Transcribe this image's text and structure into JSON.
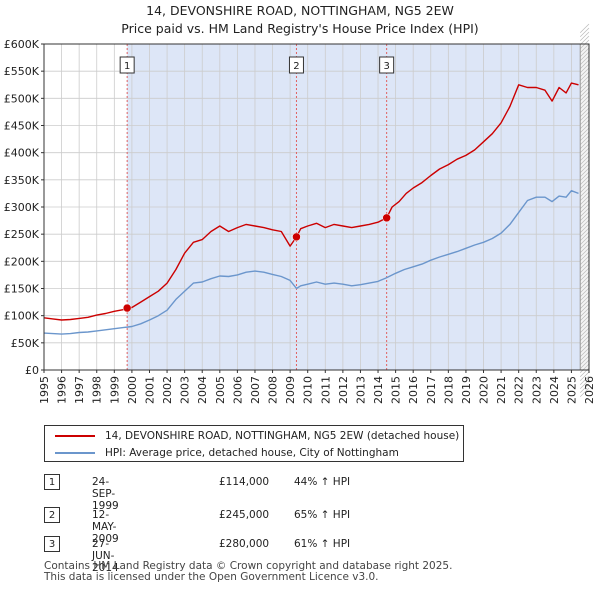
{
  "title_line1": "14, DEVONSHIRE ROAD, NOTTINGHAM, NG5 2EW",
  "title_line2": "Price paid vs. HM Land Registry's House Price Index (HPI)",
  "legend": {
    "property_label": "14, DEVONSHIRE ROAD, NOTTINGHAM, NG5 2EW (detached house)",
    "hpi_label": "HPI: Average price, detached house, City of Nottingham"
  },
  "annotations": [
    {
      "num": "1",
      "date": "24-SEP-1999",
      "price": "£114,000",
      "hpi": "44% ↑ HPI"
    },
    {
      "num": "2",
      "date": "12-MAY-2009",
      "price": "£245,000",
      "hpi": "65% ↑ HPI"
    },
    {
      "num": "3",
      "date": "27-JUN-2014",
      "price": "£280,000",
      "hpi": "61% ↑ HPI"
    }
  ],
  "footer_line1": "Contains HM Land Registry data © Crown copyright and database right 2025.",
  "footer_line2": "This data is licensed under the Open Government Licence v3.0.",
  "chart_data": {
    "type": "line",
    "title": "14, DEVONSHIRE ROAD, NOTTINGHAM, NG5 2EW — Price paid vs. HM Land Registry's House Price Index (HPI)",
    "xlabel": "",
    "ylabel": "",
    "xlim": [
      1995,
      2026
    ],
    "ylim": [
      0,
      600000
    ],
    "x_ticks": [
      1995,
      1996,
      1997,
      1998,
      1999,
      2000,
      2001,
      2002,
      2003,
      2004,
      2005,
      2006,
      2007,
      2008,
      2009,
      2010,
      2011,
      2012,
      2013,
      2014,
      2015,
      2016,
      2017,
      2018,
      2019,
      2020,
      2021,
      2022,
      2023,
      2024,
      2025,
      2026
    ],
    "y_ticks": [
      0,
      50000,
      100000,
      150000,
      200000,
      250000,
      300000,
      350000,
      400000,
      450000,
      500000,
      550000,
      600000
    ],
    "y_tick_labels": [
      "£0",
      "£50K",
      "£100K",
      "£150K",
      "£200K",
      "£250K",
      "£300K",
      "£350K",
      "£400K",
      "£450K",
      "£500K",
      "£550K",
      "£600K"
    ],
    "colors": {
      "property": "#cc0000",
      "hpi": "#6b96cc",
      "shade": "#dde6f7",
      "vline": "#e06060",
      "hatch": "#bbbbbb",
      "grid": "#cccccc"
    },
    "shaded_range": [
      1999.73,
      2025.5
    ],
    "future_hatch_from": 2025.5,
    "sales": [
      {
        "label": "1",
        "x": 1999.73,
        "y": 114000
      },
      {
        "label": "2",
        "x": 2009.36,
        "y": 245000
      },
      {
        "label": "3",
        "x": 2014.49,
        "y": 280000
      }
    ],
    "series": [
      {
        "name": "14, DEVONSHIRE ROAD, NOTTINGHAM, NG5 2EW (detached house)",
        "color": "#cc0000",
        "x": [
          1995.0,
          1995.5,
          1996.0,
          1996.5,
          1997.0,
          1997.5,
          1998.0,
          1998.5,
          1999.0,
          1999.5,
          1999.73,
          2000.0,
          2000.5,
          2001.0,
          2001.5,
          2002.0,
          2002.5,
          2003.0,
          2003.5,
          2004.0,
          2004.5,
          2005.0,
          2005.5,
          2006.0,
          2006.5,
          2007.0,
          2007.5,
          2008.0,
          2008.5,
          2009.0,
          2009.36,
          2009.6,
          2010.0,
          2010.5,
          2011.0,
          2011.5,
          2012.0,
          2012.5,
          2013.0,
          2013.5,
          2014.0,
          2014.49,
          2014.8,
          2015.2,
          2015.6,
          2016.0,
          2016.5,
          2017.0,
          2017.5,
          2018.0,
          2018.5,
          2019.0,
          2019.5,
          2020.0,
          2020.5,
          2021.0,
          2021.5,
          2022.0,
          2022.5,
          2023.0,
          2023.5,
          2023.9,
          2024.3,
          2024.7,
          2025.0,
          2025.4
        ],
        "values": [
          96000,
          94000,
          92000,
          93000,
          95000,
          97000,
          101000,
          104000,
          108000,
          111000,
          114000,
          115000,
          125000,
          135000,
          145000,
          160000,
          185000,
          215000,
          235000,
          240000,
          255000,
          265000,
          255000,
          262000,
          268000,
          265000,
          262000,
          258000,
          255000,
          228000,
          245000,
          260000,
          265000,
          270000,
          262000,
          268000,
          265000,
          262000,
          265000,
          268000,
          272000,
          280000,
          300000,
          310000,
          325000,
          335000,
          345000,
          358000,
          370000,
          378000,
          388000,
          395000,
          405000,
          420000,
          435000,
          455000,
          485000,
          525000,
          520000,
          520000,
          515000,
          495000,
          520000,
          510000,
          528000,
          525000
        ]
      },
      {
        "name": "HPI: Average price, detached house, City of Nottingham",
        "color": "#6b96cc",
        "x": [
          1995.0,
          1995.5,
          1996.0,
          1996.5,
          1997.0,
          1997.5,
          1998.0,
          1998.5,
          1999.0,
          1999.5,
          2000.0,
          2000.5,
          2001.0,
          2001.5,
          2002.0,
          2002.5,
          2003.0,
          2003.5,
          2004.0,
          2004.5,
          2005.0,
          2005.5,
          2006.0,
          2006.5,
          2007.0,
          2007.5,
          2008.0,
          2008.5,
          2009.0,
          2009.36,
          2009.6,
          2010.0,
          2010.5,
          2011.0,
          2011.5,
          2012.0,
          2012.5,
          2013.0,
          2013.5,
          2014.0,
          2014.5,
          2015.0,
          2015.5,
          2016.0,
          2016.5,
          2017.0,
          2017.5,
          2018.0,
          2018.5,
          2019.0,
          2019.5,
          2020.0,
          2020.5,
          2021.0,
          2021.5,
          2022.0,
          2022.5,
          2023.0,
          2023.5,
          2023.9,
          2024.3,
          2024.7,
          2025.0,
          2025.4
        ],
        "values": [
          68000,
          67000,
          66000,
          67000,
          69000,
          70000,
          72000,
          74000,
          76000,
          78000,
          80000,
          85000,
          92000,
          100000,
          110000,
          130000,
          145000,
          160000,
          162000,
          168000,
          173000,
          172000,
          175000,
          180000,
          182000,
          180000,
          176000,
          172000,
          165000,
          150000,
          155000,
          158000,
          162000,
          158000,
          160000,
          158000,
          155000,
          157000,
          160000,
          163000,
          170000,
          178000,
          185000,
          190000,
          195000,
          202000,
          208000,
          213000,
          218000,
          224000,
          230000,
          235000,
          242000,
          252000,
          268000,
          290000,
          312000,
          318000,
          318000,
          310000,
          320000,
          318000,
          330000,
          325000
        ]
      }
    ]
  }
}
